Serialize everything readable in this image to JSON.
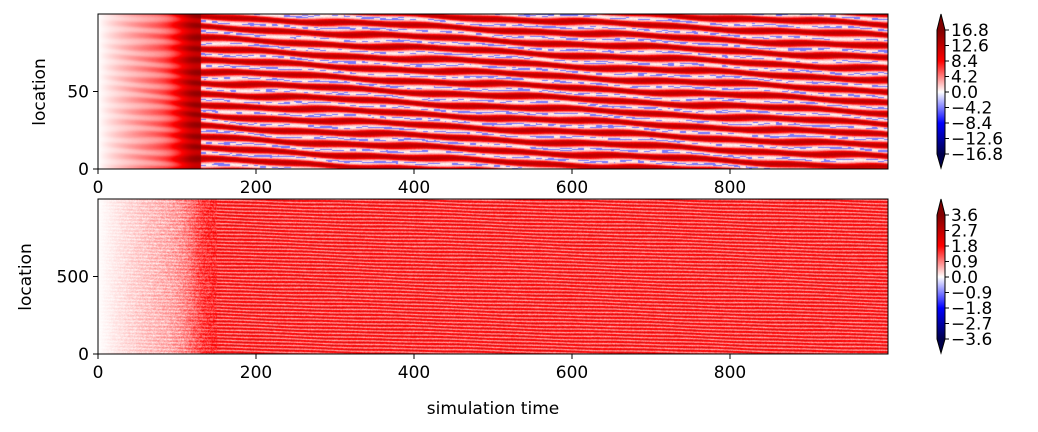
{
  "chart_data": [
    {
      "type": "heatmap",
      "title": "",
      "xlabel": "",
      "ylabel": "location",
      "xlim": [
        0,
        1000
      ],
      "ylim": [
        0,
        100
      ],
      "x_ticks": [
        0,
        200,
        400,
        600,
        800
      ],
      "y_ticks": [
        0,
        50
      ],
      "colorbar": {
        "ticks": [
          16.8,
          12.6,
          8.4,
          4.2,
          0.0,
          -4.2,
          -8.4,
          -12.6,
          -16.8
        ],
        "tick_labels": [
          "16.8",
          "12.6",
          "8.4",
          "4.2",
          "0.0",
          "−4.2",
          "−8.4",
          "−12.6",
          "−16.8"
        ],
        "vmin": -18.9,
        "vmax": 18.9,
        "extend": "both",
        "colormap": "seismic"
      },
      "field": {
        "n_rows": 100,
        "transient_end": 130,
        "stripe_count": 14,
        "stripe_drift": "downward",
        "peak": 15,
        "trough": -5
      }
    },
    {
      "type": "heatmap",
      "title": "",
      "xlabel": "simulation time",
      "ylabel": "location",
      "xlim": [
        0,
        1000
      ],
      "ylim": [
        0,
        1000
      ],
      "x_ticks": [
        0,
        200,
        400,
        600,
        800
      ],
      "y_ticks": [
        0,
        500
      ],
      "colorbar": {
        "ticks": [
          3.6,
          2.7,
          1.8,
          0.9,
          0.0,
          -0.9,
          -1.8,
          -2.7,
          -3.6
        ],
        "tick_labels": [
          "3.6",
          "2.7",
          "1.8",
          "0.9",
          "0.0",
          "−0.9",
          "−1.8",
          "−2.7",
          "−3.6"
        ],
        "vmin": -4.05,
        "vmax": 4.05,
        "extend": "both",
        "colormap": "seismic"
      },
      "field": {
        "n_rows": 1000,
        "transient_end": 150,
        "stripe_count": 45,
        "stripe_drift": "downward",
        "peak": 2.8,
        "trough": -0.4
      }
    }
  ]
}
